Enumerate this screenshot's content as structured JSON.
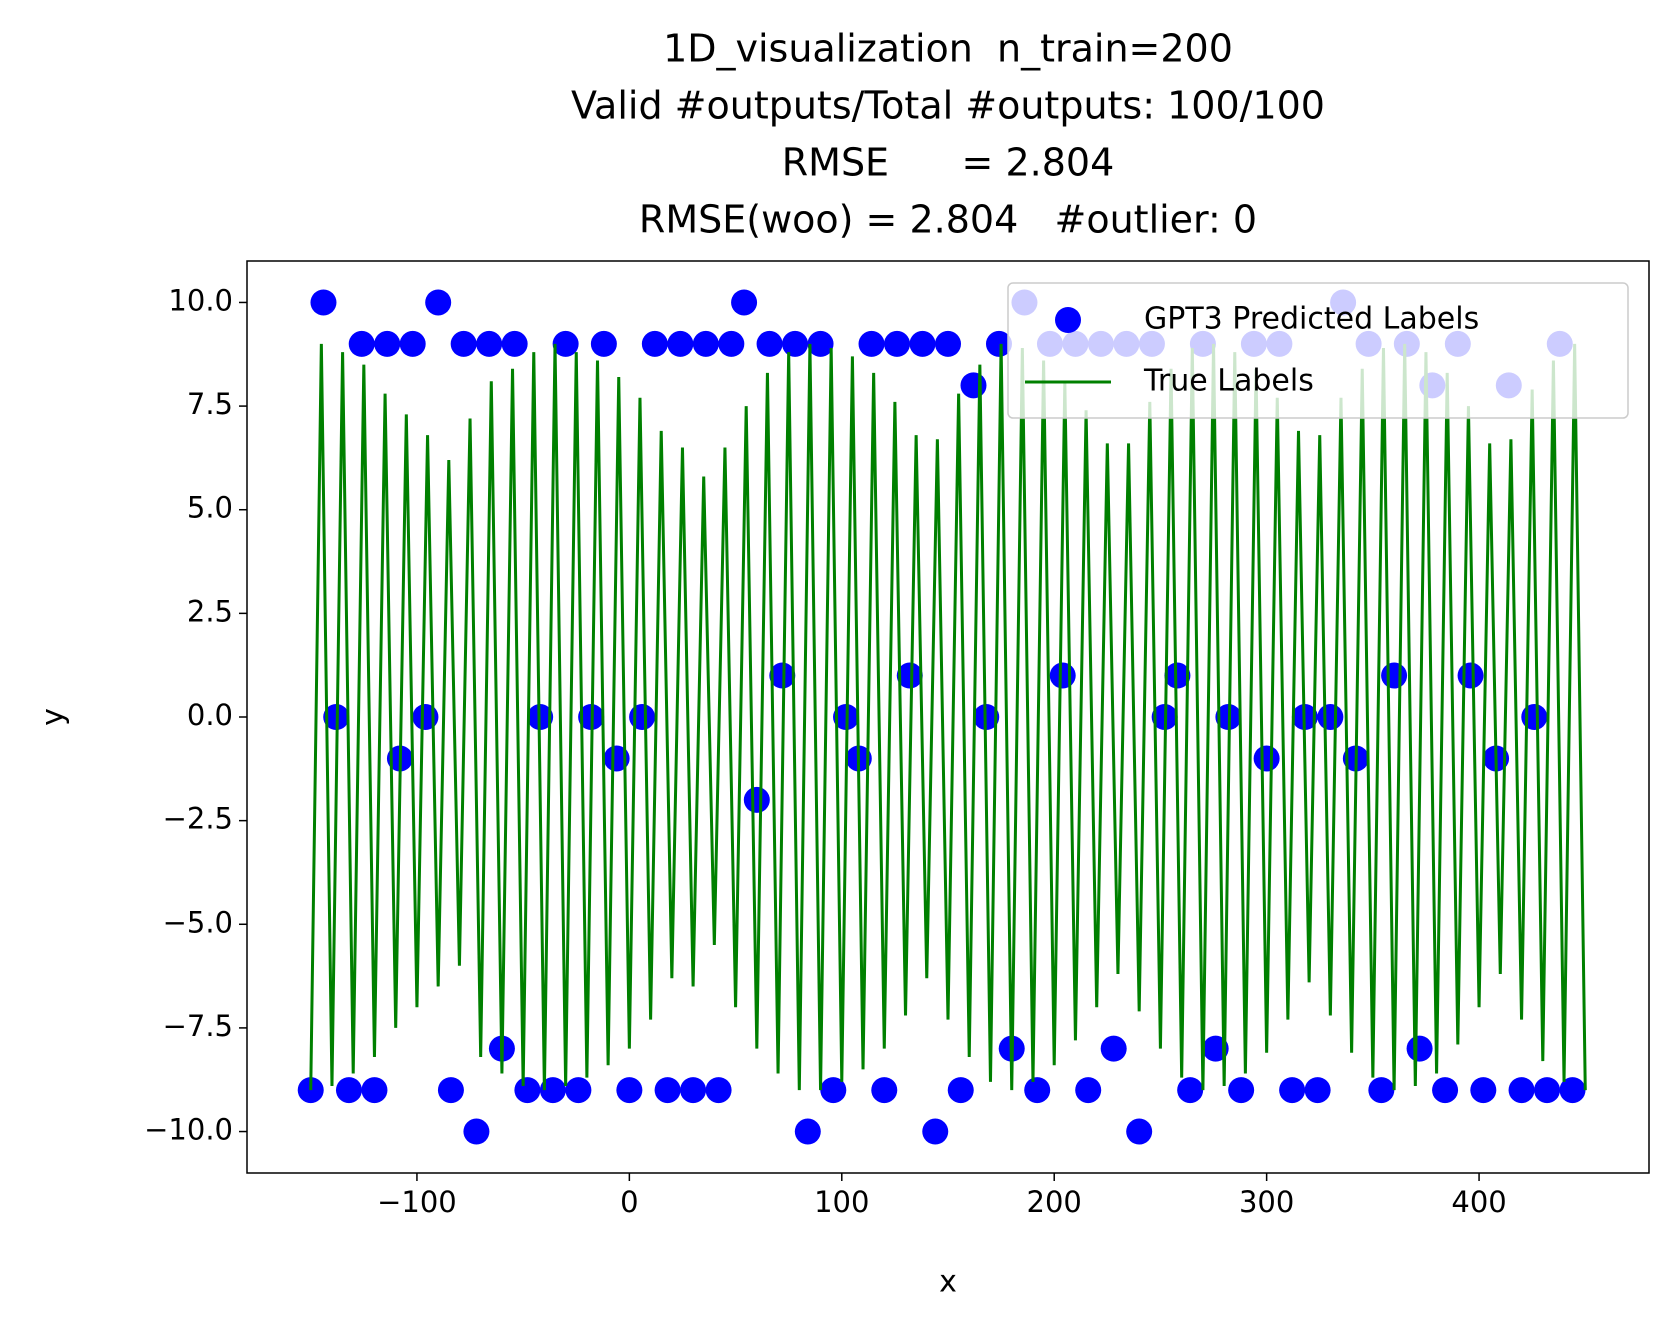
{
  "chart_data": {
    "type": "scatter",
    "title": [
      "1D_visualization  n_train=200",
      "Valid #outputs/Total #outputs: 100/100",
      "RMSE      = 2.804",
      "RMSE(woo) = 2.804   #outlier: 0"
    ],
    "x_label": "x",
    "y_label": "y",
    "xlim": [
      -180,
      480
    ],
    "ylim": [
      -11,
      11
    ],
    "xticks": [
      {
        "value": -100,
        "label": "−100"
      },
      0,
      100,
      200,
      300,
      400
    ],
    "yticks": [
      {
        "value": 10,
        "label": "10.0"
      },
      7.5,
      {
        "value": 5,
        "label": "5.0"
      },
      2.5,
      {
        "value": 0,
        "label": "0.0"
      },
      {
        "value": -2.5,
        "label": "−2.5"
      },
      {
        "value": -5,
        "label": "−5.0"
      },
      {
        "value": -7.5,
        "label": "−7.5"
      },
      {
        "value": -10,
        "label": "−10.0"
      }
    ],
    "grid": false,
    "legend": "upper right",
    "series": [
      {
        "name": "GPT3 Predicted Labels",
        "type": "scatter",
        "color": "#0000ff",
        "x": [
          -150,
          -144,
          -138,
          -132,
          -126,
          -120,
          -114,
          -108,
          -102,
          -96,
          -90,
          -84,
          -78,
          -72,
          -66,
          -60,
          -54,
          -48,
          -42,
          -36,
          -30,
          -24,
          -18,
          -12,
          -6,
          0,
          6,
          12,
          18,
          24,
          30,
          36,
          42,
          48,
          54,
          60,
          66,
          72,
          78,
          84,
          90,
          96,
          102,
          108,
          114,
          120,
          126,
          132,
          138,
          144,
          150,
          156,
          162,
          168,
          174,
          180,
          186,
          192,
          198,
          204,
          210,
          216,
          222,
          228,
          234,
          240,
          246,
          252,
          258,
          264,
          270,
          276,
          282,
          288,
          294,
          300,
          306,
          312,
          318,
          324,
          330,
          336,
          342,
          348,
          354,
          360,
          366,
          372,
          378,
          384,
          390,
          396,
          402,
          408,
          414,
          420,
          426,
          432,
          438,
          444
        ],
        "values": [
          -9,
          10,
          0,
          -9,
          9,
          -9,
          9,
          -1,
          9,
          0,
          10,
          -9,
          9,
          -10,
          9,
          -8,
          9,
          -9,
          0,
          -9,
          9,
          -9,
          0,
          9,
          -1,
          -9,
          0,
          9,
          -9,
          9,
          -9,
          9,
          -9,
          9,
          10,
          -2,
          9,
          1,
          9,
          -10,
          9,
          -9,
          0,
          -1,
          9,
          -9,
          9,
          1,
          9,
          -10,
          9,
          -9,
          8,
          0,
          9,
          -8,
          10,
          -9,
          9,
          1,
          9,
          -9,
          9,
          -8,
          9,
          -10,
          9,
          0,
          1,
          -9,
          9,
          -8,
          0,
          -9,
          9,
          -1,
          9,
          -9,
          0,
          -9,
          0,
          10,
          -1,
          9,
          -9,
          1,
          9,
          -8,
          8,
          -9,
          9,
          1,
          -9,
          -1,
          8,
          -9,
          0,
          -9,
          9,
          -9
        ]
      },
      {
        "name": "True Labels",
        "type": "line",
        "color": "#008000",
        "x": [
          -150,
          -145,
          -140,
          -135,
          -130,
          -125,
          -120,
          -115,
          -110,
          -105,
          -100,
          -95,
          -90,
          -85,
          -80,
          -75,
          -70,
          -65,
          -60,
          -55,
          -50,
          -45,
          -40,
          -35,
          -30,
          -25,
          -20,
          -15,
          -10,
          -5,
          0,
          5,
          10,
          15,
          20,
          25,
          30,
          35,
          40,
          45,
          50,
          55,
          60,
          65,
          70,
          75,
          80,
          85,
          90,
          95,
          100,
          105,
          110,
          115,
          120,
          125,
          130,
          135,
          140,
          145,
          150,
          155,
          160,
          165,
          170,
          175,
          180,
          185,
          190,
          195,
          200,
          205,
          210,
          215,
          220,
          225,
          230,
          235,
          240,
          245,
          250,
          255,
          260,
          265,
          270,
          275,
          280,
          285,
          290,
          295,
          300,
          305,
          310,
          315,
          320,
          325,
          330,
          335,
          340,
          345,
          350,
          355,
          360,
          365,
          370,
          375,
          380,
          385,
          390,
          395,
          400,
          405,
          410,
          415,
          420,
          425,
          430,
          435,
          440,
          445,
          450
        ],
        "values": [
          -9,
          9,
          -8.9,
          8.8,
          -8.6,
          8.5,
          -8.2,
          7.8,
          -7.5,
          7.3,
          -7,
          6.8,
          -6.5,
          6.2,
          -6,
          7.2,
          -8.2,
          8.1,
          -8.6,
          8.4,
          -8.9,
          8.8,
          -9,
          9,
          -8.9,
          8.8,
          -8.7,
          8.6,
          -8.4,
          8.2,
          -8,
          7.7,
          -7.3,
          6.9,
          -6.3,
          6.5,
          -6.5,
          5.8,
          -5.5,
          6.5,
          -7,
          7.5,
          -8,
          8.3,
          -8.6,
          8.8,
          -9,
          9,
          -9,
          8.9,
          -8.8,
          8.7,
          -8.5,
          8.3,
          -8,
          7.6,
          -7.2,
          6.8,
          -6.3,
          6.7,
          -7.3,
          7.8,
          -8.2,
          8.5,
          -8.8,
          9,
          -9,
          8.9,
          -8.8,
          8.6,
          -8.4,
          8.1,
          -7.8,
          7.4,
          -7,
          6.6,
          -6.2,
          6.6,
          -7.1,
          7.6,
          -8,
          8.4,
          -8.7,
          8.9,
          -9,
          9,
          -8.9,
          8.8,
          -8.6,
          8.4,
          -8.1,
          7.7,
          -7.3,
          6.9,
          -6.4,
          6.8,
          -7.2,
          7.7,
          -8.1,
          8.4,
          -8.7,
          8.9,
          -9,
          9,
          -8.9,
          8.8,
          -8.6,
          8.3,
          -7.9,
          7.5,
          -7,
          6.6,
          -6.2,
          6.7,
          -7.3,
          7.9,
          -8.3,
          8.6,
          -8.8,
          9,
          -9
        ]
      }
    ]
  }
}
